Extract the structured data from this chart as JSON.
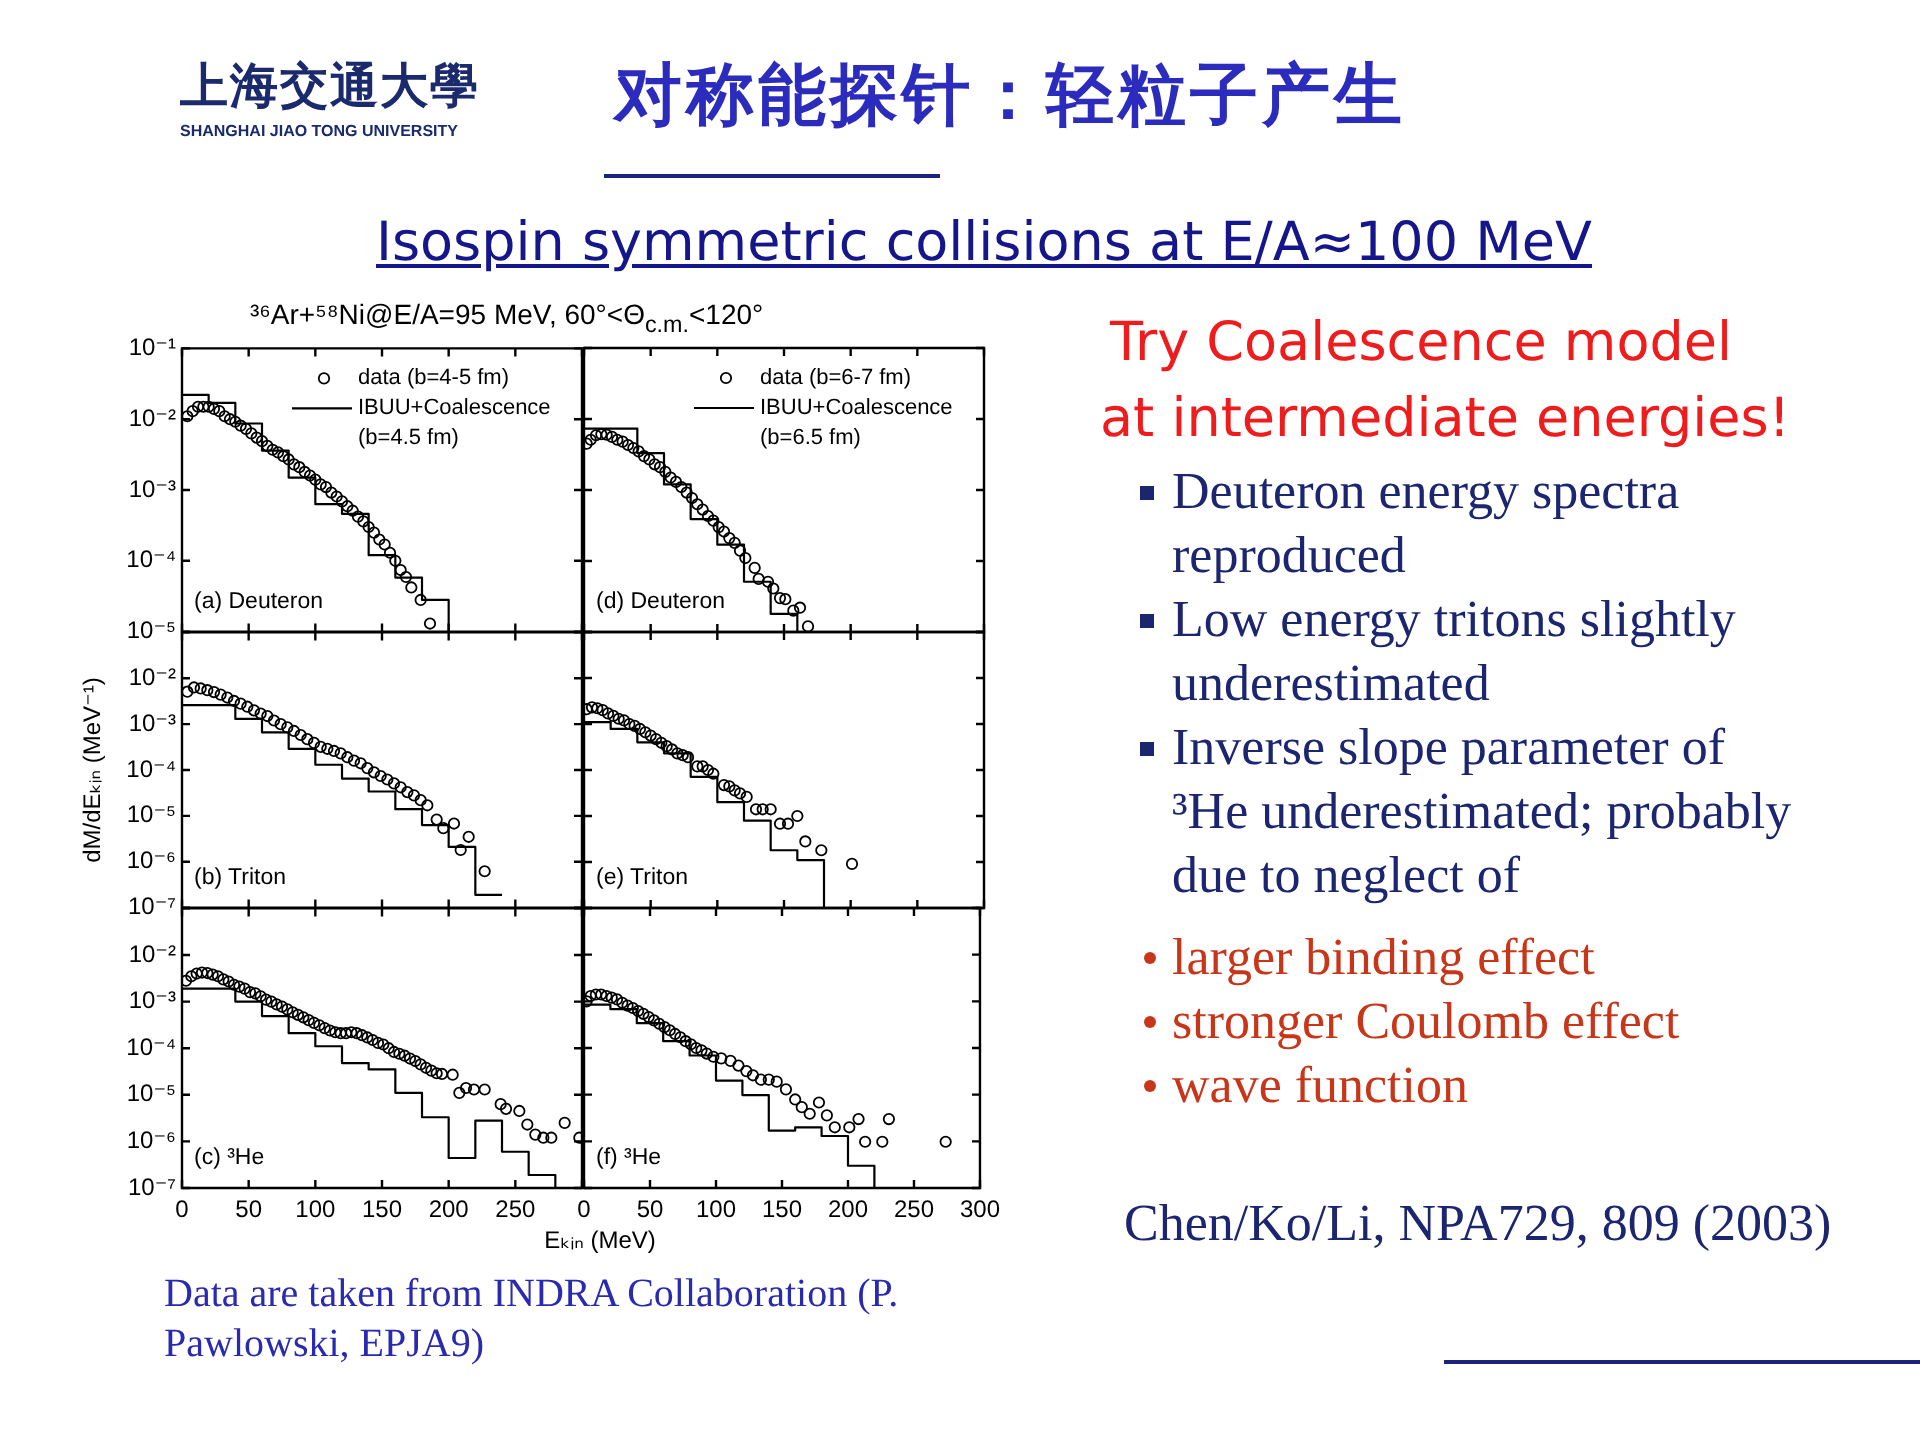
{
  "chart_data": [
    {
      "type": "other",
      "annotations": [
        "上海交通大學",
        "SHANGHAI JIAO TONG UNIVERSITY"
      ]
    },
    {
      "type": "other",
      "title": "对称能探针：轻粒子产生",
      "subtitle": "Isospin symmetric collisions at E/A≈100 MeV",
      "annotations": [
        "³⁶Ar+⁵⁸Ni@E/A=95 MeV, 60°<Θ$_{c.m.}$<120°"
      ]
    },
    {
      "type": "scatter",
      "log": "y",
      "legend": "top right",
      "tick_labels": "y",
      "xlim": [
        0,
        300
      ],
      "xticks": [
        0,
        50,
        100,
        150,
        200,
        250,
        300
      ],
      "ylim": [
        1e-05,
        0.1
      ],
      "yticks": [
        {
          "value": 0.1,
          "label": "10⁻¹"
        },
        {
          "value": 0.01,
          "label": "10⁻²"
        },
        {
          "value": 0.001,
          "label": "10⁻³"
        },
        {
          "value": 0.0001,
          "label": "10⁻⁴"
        },
        {
          "value": 1e-05,
          "label": "10⁻⁵"
        }
      ],
      "annotations": [
        "(a) Deuteron"
      ],
      "series": [
        {
          "name": "data (b=4-5 fm)",
          "type": "scatter",
          "marker": "circle",
          "color": "#000000",
          "x": [
            4,
            8,
            12,
            16,
            20,
            24,
            28,
            32,
            36,
            40,
            44,
            48,
            52,
            56,
            60,
            64,
            68,
            72,
            76,
            80,
            84,
            88,
            92,
            96,
            100,
            104,
            108,
            112,
            116,
            120,
            124,
            128,
            132,
            136,
            140,
            144,
            148,
            152,
            156,
            160,
            164,
            168,
            172,
            179,
            186
          ],
          "values": [
            0.011,
            0.013,
            0.015,
            0.015,
            0.015,
            0.014,
            0.013,
            0.011,
            0.01,
            0.0092,
            0.0081,
            0.0073,
            0.0063,
            0.0055,
            0.0049,
            0.0042,
            0.0037,
            0.0034,
            0.003,
            0.0027,
            0.0023,
            0.0021,
            0.0018,
            0.0016,
            0.0014,
            0.0012,
            0.0011,
            0.00092,
            0.00081,
            0.00069,
            0.00059,
            0.00051,
            0.00042,
            0.00036,
            0.0003,
            0.00025,
            0.0002,
            0.00017,
            0.00013,
            0.0001,
            7.4e-05,
            5.9e-05,
            4.2e-05,
            2.8e-05,
            1.3e-05
          ]
        },
        {
          "name": "IBUU+Coalescence (b=4.5 fm)",
          "type": "step",
          "color": "#000000",
          "x": [
            0,
            20,
            40,
            60,
            80,
            100,
            120,
            140,
            160,
            180,
            200
          ],
          "values": [
            0.022,
            0.017,
            0.0087,
            0.0036,
            0.0015,
            0.00063,
            0.00046,
            0.00012,
            5.8e-05,
            2.8e-05,
            1e-05
          ]
        }
      ]
    },
    {
      "type": "scatter",
      "log": "y",
      "tick_labels": "y",
      "ylabel": "dM/dEₖᵢₙ (MeV⁻¹)",
      "xlim": [
        0,
        300
      ],
      "xticks": [
        0,
        50,
        100,
        150,
        200,
        250,
        300
      ],
      "ylim": [
        1e-07,
        0.1
      ],
      "yticks": [
        {
          "value": 0.1,
          "label": null
        },
        {
          "value": 0.01,
          "label": "10⁻²"
        },
        {
          "value": 0.001,
          "label": "10⁻³"
        },
        {
          "value": 0.0001,
          "label": "10⁻⁴"
        },
        {
          "value": 1e-05,
          "label": "10⁻⁵"
        },
        {
          "value": 1e-06,
          "label": "10⁻⁶"
        },
        {
          "value": 1e-07,
          "label": "10⁻⁷"
        }
      ],
      "annotations": [
        "(b) Triton"
      ],
      "series": [
        {
          "type": "scatter",
          "marker": "circle",
          "color": "#000000",
          "x": [
            4,
            9,
            14,
            19,
            24,
            29,
            34,
            39,
            44,
            49,
            54,
            59,
            64,
            69,
            74,
            79,
            84,
            89,
            94,
            99,
            104,
            109,
            114,
            119,
            124,
            129,
            134,
            139,
            144,
            149,
            154,
            159,
            164,
            169,
            174,
            179,
            184,
            191,
            196,
            204,
            209,
            215,
            227
          ],
          "values": [
            0.0051,
            0.0063,
            0.006,
            0.0055,
            0.005,
            0.0044,
            0.0038,
            0.0032,
            0.0028,
            0.0024,
            0.002,
            0.0017,
            0.0015,
            0.0012,
            0.001,
            0.00085,
            0.00071,
            0.00058,
            0.00047,
            0.00039,
            0.00032,
            0.00029,
            0.00026,
            0.00023,
            0.00019,
            0.00016,
            0.00014,
            0.00011,
            8.9e-05,
            7.4e-05,
            6.2e-05,
            5.1e-05,
            4.2e-05,
            3.3e-05,
            2.8e-05,
            2.2e-05,
            1.7e-05,
            8.3e-06,
            5.4e-06,
            6.8e-06,
            1.8e-06,
            3.5e-06,
            6.2e-07
          ]
        },
        {
          "type": "step",
          "color": "#000000",
          "x": [
            0,
            20,
            40,
            60,
            80,
            100,
            120,
            140,
            160,
            180,
            200,
            220,
            240
          ],
          "values": [
            0.0026,
            0.0026,
            0.0013,
            0.00066,
            0.00029,
            0.00013,
            6.5e-05,
            3.4e-05,
            1.4e-05,
            6.3e-06,
            2.1e-06,
            1.9e-07,
            1.9e-07
          ]
        }
      ]
    },
    {
      "type": "scatter",
      "log": "y",
      "xlim": [
        0,
        300
      ],
      "xticks": [
        0,
        50,
        100,
        150,
        200,
        250,
        {
          "value": 300,
          "label": null
        }
      ],
      "ylim": [
        1e-07,
        0.1
      ],
      "yticks": [
        {
          "value": 0.1,
          "label": null
        },
        {
          "value": 0.01,
          "label": "10⁻²"
        },
        {
          "value": 0.001,
          "label": "10⁻³"
        },
        {
          "value": 0.0001,
          "label": "10⁻⁴"
        },
        {
          "value": 1e-05,
          "label": "10⁻⁵"
        },
        {
          "value": 1e-06,
          "label": "10⁻⁶"
        },
        {
          "value": 1e-07,
          "label": "10⁻⁷"
        }
      ],
      "annotations": [
        "(c) ³He"
      ],
      "series": [
        {
          "type": "scatter",
          "marker": "circle",
          "color": "#000000",
          "x": [
            3,
            7,
            11,
            15,
            19,
            23,
            27,
            31,
            35,
            39,
            43,
            47,
            51,
            55,
            59,
            63,
            67,
            71,
            75,
            79,
            83,
            87,
            91,
            95,
            99,
            103,
            107,
            111,
            115,
            119,
            123,
            127,
            131,
            135,
            139,
            143,
            147,
            151,
            155,
            159,
            163,
            167,
            171,
            175,
            179,
            183,
            187,
            191,
            195,
            203,
            208,
            213,
            219,
            227,
            239,
            243,
            253,
            259,
            265,
            271,
            277,
            287,
            298
          ],
          "values": [
            0.0028,
            0.0035,
            0.004,
            0.0042,
            0.0041,
            0.0038,
            0.0035,
            0.003,
            0.0027,
            0.0023,
            0.0021,
            0.0019,
            0.0016,
            0.0015,
            0.0013,
            0.0011,
            0.001,
            0.00087,
            0.00078,
            0.00068,
            0.00059,
            0.00052,
            0.00046,
            0.0004,
            0.00035,
            0.00031,
            0.00027,
            0.00024,
            0.00022,
            0.00021,
            0.00021,
            0.00022,
            0.00021,
            0.00019,
            0.00017,
            0.00015,
            0.00013,
            0.00012,
            0.0001,
            8.3e-05,
            7.6e-05,
            6.9e-05,
            6e-05,
            5.3e-05,
            4.5e-05,
            3.8e-05,
            3.3e-05,
            2.9e-05,
            2.8e-05,
            2.7e-05,
            1.1e-05,
            1.4e-05,
            1.3e-05,
            1.3e-05,
            6.3e-06,
            5e-06,
            4.5e-06,
            2.3e-06,
            1.4e-06,
            1.2e-06,
            1.2e-06,
            2.5e-06,
            1.2e-06
          ]
        },
        {
          "type": "step",
          "color": "#000000",
          "x": [
            0,
            20,
            40,
            60,
            80,
            100,
            120,
            140,
            160,
            180,
            200,
            220,
            240,
            260,
            280
          ],
          "values": [
            0.0019,
            0.0019,
            0.001,
            0.00049,
            0.00021,
            0.00011,
            4.8e-05,
            3.5e-05,
            1.1e-05,
            3.3e-06,
            4.4e-07,
            2.8e-06,
            6e-07,
            1.9e-07,
            1e-07
          ]
        }
      ]
    },
    {
      "type": "scatter",
      "log": "y",
      "legend": "top right",
      "tick_labels": false,
      "xlim": [
        0,
        300
      ],
      "xticks": [
        0,
        50,
        100,
        150,
        200,
        250,
        300
      ],
      "ylim": [
        1e-05,
        0.1
      ],
      "yticks": [
        0.1,
        0.01,
        0.001,
        0.0001,
        1e-05
      ],
      "annotations": [
        "(d) Deuteron"
      ],
      "series": [
        {
          "name": "data (b=6-7 fm)",
          "type": "scatter",
          "marker": "circle",
          "color": "#000000",
          "x": [
            2,
            5,
            9,
            13,
            17,
            21,
            25,
            29,
            33,
            37,
            41,
            45,
            49,
            53,
            57,
            61,
            65,
            69,
            73,
            77,
            81,
            85,
            89,
            93,
            97,
            101,
            105,
            109,
            113,
            117,
            121,
            128,
            131,
            138,
            142,
            147,
            151,
            157,
            162,
            168
          ],
          "values": [
            0.0045,
            0.0051,
            0.0059,
            0.0061,
            0.006,
            0.0056,
            0.0051,
            0.0048,
            0.0043,
            0.0039,
            0.0035,
            0.003,
            0.0027,
            0.0023,
            0.0021,
            0.0018,
            0.0015,
            0.0013,
            0.0011,
            0.00092,
            0.00077,
            0.00063,
            0.00053,
            0.00043,
            0.00037,
            0.0003,
            0.00026,
            0.00021,
            0.00018,
            0.00014,
            0.00011,
            8e-05,
            5.6e-05,
            5.1e-05,
            4.1e-05,
            3e-05,
            2.9e-05,
            2e-05,
            2.2e-05,
            1.2e-05
          ]
        },
        {
          "name": "IBUU+Coalescence (b=6.5 fm)",
          "type": "step",
          "color": "#000000",
          "x": [
            0,
            20,
            40,
            60,
            80,
            100,
            120,
            140,
            160
          ],
          "values": [
            0.0073,
            0.0073,
            0.0033,
            0.0012,
            0.00039,
            0.00017,
            5.1e-05,
            1.8e-05,
            1e-05
          ]
        }
      ]
    },
    {
      "type": "scatter",
      "log": "y",
      "tick_labels": false,
      "xlim": [
        0,
        300
      ],
      "xticks": [
        0,
        50,
        100,
        150,
        200,
        250,
        300
      ],
      "ylim": [
        1e-07,
        0.1
      ],
      "yticks": [
        0.1,
        0.01,
        0.001,
        0.0001,
        1e-05,
        1e-06,
        1e-07
      ],
      "annotations": [
        "(e) Triton"
      ],
      "series": [
        {
          "type": "scatter",
          "marker": "circle",
          "color": "#000000",
          "x": [
            2,
            6,
            10,
            14,
            18,
            22,
            26,
            30,
            34,
            38,
            42,
            46,
            50,
            54,
            58,
            62,
            66,
            70,
            74,
            78,
            85,
            89,
            93,
            97,
            105,
            109,
            113,
            117,
            122,
            129,
            134,
            140,
            147,
            153,
            160,
            166,
            178,
            201
          ],
          "values": [
            0.0021,
            0.0023,
            0.0022,
            0.002,
            0.0017,
            0.0015,
            0.0013,
            0.0012,
            0.001,
            0.00091,
            0.00078,
            0.00066,
            0.00056,
            0.00047,
            0.00039,
            0.00033,
            0.00028,
            0.00023,
            0.00021,
            0.00019,
            0.00012,
            0.00012,
            0.0001,
            8.3e-05,
            4.7e-05,
            4.4e-05,
            3.6e-05,
            3.1e-05,
            2.6e-05,
            1.4e-05,
            1.4e-05,
            1.4e-05,
            6.8e-06,
            6.8e-06,
            1e-05,
            2.8e-06,
            1.8e-06,
            9.1e-07
          ]
        },
        {
          "type": "step",
          "color": "#000000",
          "x": [
            0,
            20,
            40,
            60,
            80,
            100,
            120,
            140,
            160,
            180
          ],
          "values": [
            0.0011,
            0.00078,
            0.0004,
            0.00023,
            7.1e-05,
            2e-05,
            7.9e-06,
            1.8e-06,
            1.1e-06,
            1e-07
          ]
        }
      ]
    },
    {
      "type": "scatter",
      "log": "y",
      "tick_labels": "x",
      "xlabel": "Eₖᵢₙ (MeV)",
      "xlim": [
        0,
        300
      ],
      "xticks": [
        0,
        50,
        100,
        150,
        200,
        250,
        300
      ],
      "ylim": [
        1e-07,
        0.1
      ],
      "yticks": [
        0.1,
        0.01,
        0.001,
        0.0001,
        1e-05,
        1e-06,
        1e-07
      ],
      "annotations": [
        "(f) ³He"
      ],
      "series": [
        {
          "type": "scatter",
          "marker": "circle",
          "color": "#000000",
          "x": [
            2,
            5,
            9,
            13,
            17,
            21,
            25,
            29,
            33,
            37,
            41,
            45,
            49,
            53,
            57,
            61,
            65,
            69,
            73,
            77,
            81,
            85,
            89,
            93,
            98,
            104,
            111,
            117,
            123,
            128,
            134,
            140,
            146,
            153,
            160,
            165,
            171,
            178,
            184,
            190,
            201,
            208,
            213,
            226,
            231,
            274
          ],
          "values": [
            0.001,
            0.0013,
            0.0014,
            0.0014,
            0.0013,
            0.0012,
            0.0011,
            0.00093,
            0.00081,
            0.00072,
            0.00062,
            0.00054,
            0.00046,
            0.00039,
            0.00033,
            0.00028,
            0.00024,
            0.0002,
            0.00017,
            0.00014,
            0.00012,
            0.0001,
            8.9e-05,
            7.6e-05,
            6.5e-05,
            6e-05,
            5.3e-05,
            4.2e-05,
            3.2e-05,
            2.6e-05,
            2.1e-05,
            2.1e-05,
            1.9e-05,
            1.3e-05,
            7.9e-06,
            5.4e-06,
            3.9e-06,
            6.8e-06,
            3.6e-06,
            2e-06,
            2e-06,
            3e-06,
            9.8e-07,
            9.8e-07,
            3e-06,
            9.8e-07
          ]
        },
        {
          "type": "step",
          "color": "#000000",
          "x": [
            0,
            20,
            40,
            60,
            80,
            100,
            120,
            140,
            160,
            180,
            200,
            220
          ],
          "values": [
            0.00085,
            0.00068,
            0.00034,
            0.00014,
            6.9e-05,
            2e-05,
            9.8e-06,
            1.7e-06,
            2e-06,
            1.3e-06,
            3e-07,
            1e-07
          ]
        }
      ]
    },
    {
      "type": "other",
      "title": "Try Coalescence model",
      "subtitle": "at intermediate energies!",
      "annotations": [
        "Deuteron energy spectra reproduced",
        "Low energy tritons slightly underestimated",
        "Inverse slope parameter of ³He underestimated; probably due to neglect of"
      ]
    },
    {
      "type": "other",
      "annotations": [
        "larger binding effect",
        "stronger Coulomb effect",
        "wave function"
      ]
    },
    {
      "type": "other",
      "annotations": [
        "Chen/Ko/Li, NPA729, 809 (2003)"
      ]
    },
    {
      "type": "other",
      "annotations": [
        "Data are taken from INDRA Collaboration (P. Pawlowski, EPJA9)"
      ]
    }
  ]
}
